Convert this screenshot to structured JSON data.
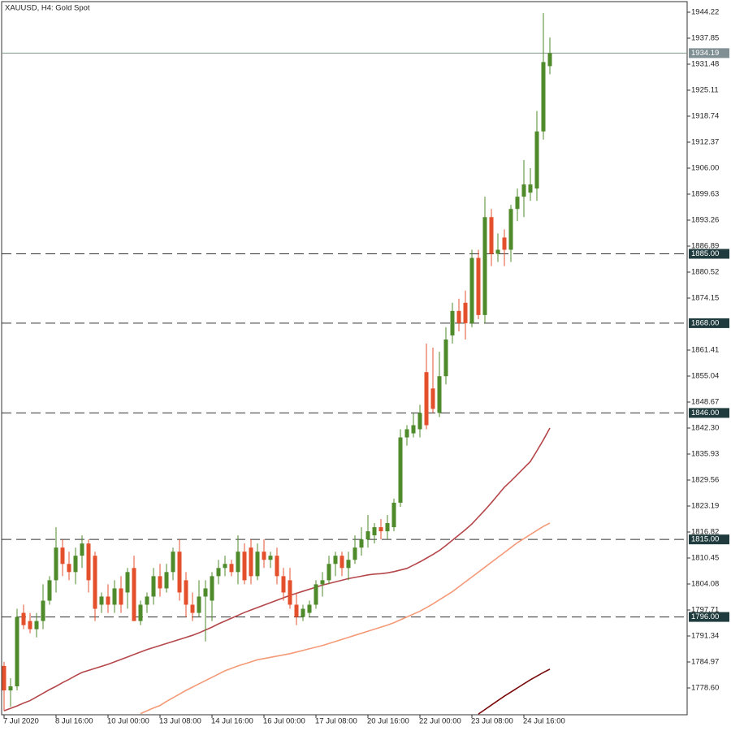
{
  "chart_data": {
    "type": "candlestick",
    "title": "XAUUSD, H4:  Gold Spot",
    "categories": [
      "7 Jul 2020",
      null,
      null,
      null,
      null,
      null,
      null,
      null,
      "8 Jul 16:00",
      null,
      null,
      null,
      null,
      null,
      null,
      null,
      "10 Jul 00:00",
      null,
      null,
      null,
      null,
      null,
      null,
      null,
      "13 Jul 08:00",
      null,
      null,
      null,
      null,
      null,
      null,
      null,
      "14 Jul 16:00",
      null,
      null,
      null,
      null,
      null,
      null,
      null,
      "16 Jul 00:00",
      null,
      null,
      null,
      null,
      null,
      null,
      null,
      "17 Jul 08:00",
      null,
      null,
      null,
      null,
      null,
      null,
      null,
      "20 Jul 16:00",
      null,
      null,
      null,
      null,
      null,
      null,
      null,
      "22 Jul 00:00",
      null,
      null,
      null,
      null,
      null,
      null,
      null,
      "23 Jul 08:00",
      null,
      null,
      null,
      null,
      null,
      null,
      null,
      "24 Jul 16:00",
      null,
      null,
      null,
      null
    ],
    "open": [
      1784,
      1778,
      1779,
      1797,
      1795,
      1793,
      1795,
      1800,
      1805,
      1813,
      1809,
      1807,
      1811,
      1814,
      1811,
      1799,
      1801,
      1799,
      1803,
      1802,
      1808,
      1795,
      1799,
      1801,
      1806,
      1803,
      1807,
      1812,
      1805,
      1799,
      1797,
      1801,
      1800,
      1806,
      1808,
      1809,
      1807,
      1812,
      1813,
      1806,
      1812,
      1810,
      1811,
      1806,
      1805,
      1799,
      1796,
      1797,
      1799,
      1804,
      1805,
      1809,
      1811,
      1808,
      1810,
      1813,
      1815,
      1816,
      1818,
      1817,
      1818,
      1824,
      1840,
      1841,
      1842,
      1856,
      1852,
      1846,
      1855,
      1865,
      1871,
      1873,
      1868,
      1884,
      1870,
      1894,
      1885,
      1889,
      1886,
      1896,
      1899,
      1900,
      1901,
      1915,
      1931
    ],
    "high": [
      1785,
      1781,
      1798,
      1799,
      1797,
      1797,
      1804,
      1806,
      1818,
      1815,
      1812,
      1813,
      1816,
      1815,
      1812,
      1802,
      1804,
      1805,
      1806,
      1808,
      1811,
      1800,
      1802,
      1808,
      1809,
      1809,
      1813,
      1815,
      1807,
      1802,
      1805,
      1805,
      1807,
      1810,
      1811,
      1810,
      1816,
      1814,
      1815,
      1814,
      1815,
      1812,
      1813,
      1808,
      1808,
      1802,
      1799,
      1800,
      1805,
      1807,
      1811,
      1812,
      1812,
      1812,
      1816,
      1818,
      1821,
      1819,
      1820,
      1821,
      1825,
      1842,
      1843,
      1846,
      1848,
      1863,
      1862,
      1861,
      1867,
      1873,
      1874,
      1876,
      1886,
      1886,
      1899,
      1896,
      1890,
      1891,
      1897,
      1901,
      1908,
      1906,
      1920,
      1944,
      1938
    ],
    "low": [
      1773,
      1774,
      1778,
      1793,
      1792,
      1791,
      1793,
      1799,
      1802,
      1806,
      1805,
      1804,
      1808,
      1802,
      1795,
      1797,
      1797,
      1797,
      1797,
      1798,
      1795,
      1794,
      1797,
      1799,
      1801,
      1802,
      1805,
      1800,
      1796,
      1795,
      1796,
      1790,
      1795,
      1804,
      1806,
      1806,
      1804,
      1804,
      1804,
      1805,
      1808,
      1808,
      1804,
      1800,
      1798,
      1794,
      1795,
      1796,
      1798,
      1801,
      1804,
      1806,
      1806,
      1805,
      1809,
      1811,
      1813,
      1814,
      1815,
      1815,
      1817,
      1823,
      1838,
      1840,
      1840,
      1842,
      1846,
      1845,
      1853,
      1863,
      1866,
      1864,
      1867,
      1869,
      1868,
      1882,
      1883,
      1882,
      1883,
      1893,
      1894,
      1898,
      1898,
      1913,
      1929
    ],
    "close": [
      1778,
      1779,
      1796,
      1794,
      1793,
      1795,
      1800,
      1805,
      1813,
      1809,
      1807,
      1811,
      1814,
      1805,
      1798,
      1801,
      1799,
      1803,
      1799,
      1807,
      1795,
      1799,
      1801,
      1806,
      1803,
      1807,
      1812,
      1802,
      1799,
      1797,
      1801,
      1803,
      1806,
      1808,
      1809,
      1807,
      1812,
      1805,
      1806,
      1812,
      1810,
      1811,
      1806,
      1802,
      1799,
      1796,
      1798,
      1799,
      1804,
      1805,
      1809,
      1811,
      1808,
      1810,
      1813,
      1815,
      1817,
      1818,
      1817,
      1819,
      1824,
      1840,
      1842,
      1843,
      1846,
      1843,
      1847,
      1855,
      1864,
      1871,
      1868,
      1868,
      1884,
      1870,
      1894,
      1885,
      1886,
      1886,
      1896,
      1899,
      1902,
      1902,
      1915,
      1932,
      1934.19
    ],
    "bull_color": "#4f8a2b",
    "bear_color": "#e5502c",
    "series": [
      {
        "color": "#b5474b",
        "values": [
          1773.0,
          1773.6,
          1774.2,
          1774.9,
          1775.5,
          1776.4,
          1777.3,
          1778.2,
          1779.0,
          1779.9,
          1780.7,
          1781.6,
          1782.4,
          1782.9,
          1783.4,
          1783.9,
          1784.4,
          1785.0,
          1785.6,
          1786.2,
          1786.8,
          1787.4,
          1788.0,
          1788.5,
          1789.0,
          1789.5,
          1790.0,
          1790.5,
          1791.0,
          1791.5,
          1792.1,
          1792.8,
          1793.5,
          1794.3,
          1795.0,
          1795.7,
          1796.4,
          1797.1,
          1797.7,
          1798.3,
          1798.9,
          1799.5,
          1800.1,
          1800.7,
          1801.3,
          1801.8,
          1802.3,
          1802.8,
          1803.3,
          1803.8,
          1804.2,
          1804.6,
          1805.0,
          1805.4,
          1805.7,
          1806.0,
          1806.3,
          1806.5,
          1806.6,
          1806.8,
          1807.1,
          1807.5,
          1807.9,
          1808.7,
          1809.5,
          1810.4,
          1811.3,
          1812.3,
          1813.5,
          1814.8,
          1816.1,
          1817.4,
          1818.8,
          1820.5,
          1822.2,
          1824.0,
          1825.9,
          1827.8,
          1829.3,
          1830.9,
          1832.5,
          1834.1,
          1836.7,
          1839.4,
          1842.3
        ]
      },
      {
        "color": "#f59a78",
        "values": [
          null,
          null,
          null,
          null,
          null,
          null,
          null,
          null,
          null,
          null,
          null,
          null,
          null,
          null,
          null,
          null,
          null,
          null,
          null,
          null,
          null,
          1772.3,
          1773.0,
          1773.7,
          1774.3,
          1775.3,
          1776.2,
          1777.1,
          1778.0,
          1778.8,
          1779.6,
          1780.4,
          1781.2,
          1782.0,
          1782.8,
          1783.4,
          1784.0,
          1784.5,
          1785.0,
          1785.5,
          1785.8,
          1786.1,
          1786.4,
          1786.7,
          1787.0,
          1787.4,
          1787.8,
          1788.2,
          1788.6,
          1789.0,
          1789.5,
          1790.0,
          1790.5,
          1791.0,
          1791.5,
          1792.0,
          1792.5,
          1793.0,
          1793.5,
          1794.0,
          1794.6,
          1795.3,
          1796.0,
          1796.7,
          1797.4,
          1798.3,
          1799.2,
          1800.2,
          1801.2,
          1802.2,
          1803.4,
          1804.6,
          1805.8,
          1807.0,
          1808.2,
          1809.4,
          1810.6,
          1811.8,
          1813.0,
          1814.2,
          1815.2,
          1816.2,
          1817.2,
          1818.2,
          1819.0
        ]
      },
      {
        "color": "#7a0a0a",
        "values": [
          null,
          null,
          null,
          null,
          null,
          null,
          null,
          null,
          null,
          null,
          null,
          null,
          null,
          null,
          null,
          null,
          null,
          null,
          null,
          null,
          null,
          null,
          null,
          null,
          null,
          null,
          null,
          null,
          null,
          null,
          null,
          null,
          null,
          null,
          null,
          null,
          null,
          null,
          null,
          null,
          null,
          null,
          null,
          null,
          null,
          null,
          null,
          null,
          null,
          null,
          null,
          null,
          null,
          null,
          null,
          null,
          null,
          null,
          null,
          null,
          null,
          null,
          null,
          null,
          null,
          null,
          null,
          null,
          null,
          null,
          null,
          null,
          null,
          1772.2,
          1773.3,
          1774.4,
          1775.5,
          1776.6,
          1777.6,
          1778.6,
          1779.6,
          1780.6,
          1781.5,
          1782.4,
          1783.2
        ]
      }
    ],
    "ylim": [
      1772.03,
      1946.81
    ],
    "yticks": [
      1944.22,
      1937.85,
      1931.48,
      1925.11,
      1918.74,
      1912.37,
      {
        "value": 1906,
        "label": "1906.00"
      },
      1899.63,
      1893.26,
      1886.89,
      1880.52,
      1874.15,
      1861.41,
      1855.04,
      1848.67,
      {
        "value": 1842.3,
        "label": "1842.30"
      },
      1835.93,
      1829.56,
      1823.19,
      1816.82,
      1810.45,
      1804.08,
      1797.71,
      1791.34,
      1784.97,
      {
        "value": 1778.6,
        "label": "1778.60"
      }
    ],
    "levels": [
      {
        "value": 1885,
        "label": "1885.00"
      },
      {
        "value": 1868,
        "label": "1868.00"
      },
      {
        "value": 1846,
        "label": "1846.00"
      },
      {
        "value": 1815,
        "label": "1815.00"
      },
      {
        "value": 1796,
        "label": "1796.00"
      }
    ],
    "last_price": 1934.19
  }
}
